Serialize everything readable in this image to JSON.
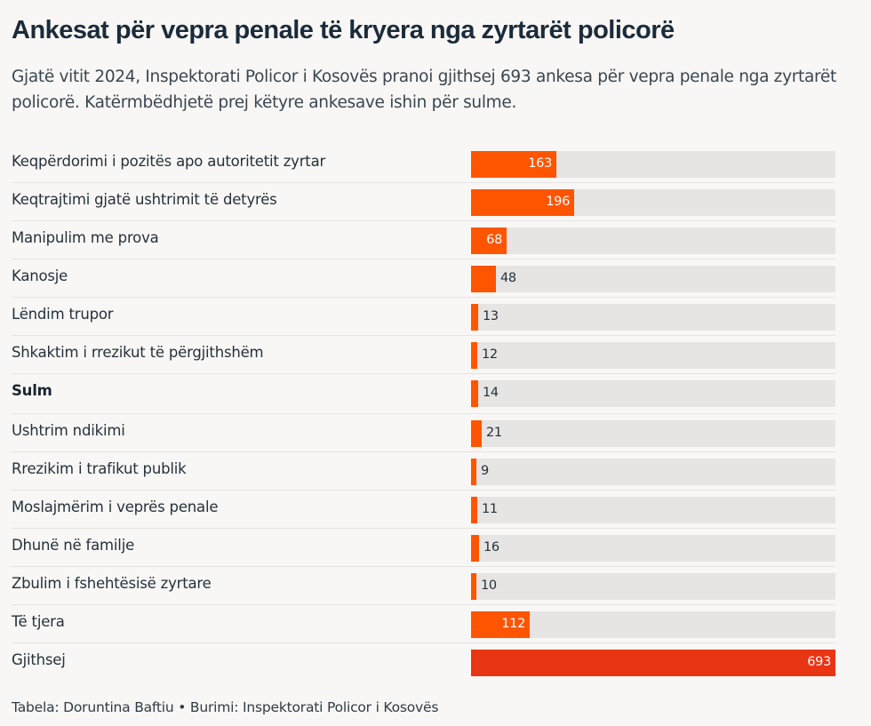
{
  "header": {
    "title": "Ankesat për vepra penale të kryera nga zyrtarët policorë",
    "subtitle": "Gjatë vitit 2024, Inspektorati Policor i Kosovës pranoi gjithsej 693 ankesa për vepra penale nga zyrtarët policorë. Katërmbëdhjetë prej këtyre ankesave ishin për sulme."
  },
  "colors": {
    "bar": "#ff5500",
    "total_bar": "#e83513",
    "track": "#e6e5e3",
    "background": "#f8f7f5"
  },
  "chart_data": {
    "type": "bar",
    "orientation": "horizontal",
    "title": "Ankesat për vepra penale të kryera nga zyrtarët policorë",
    "xlabel": "",
    "ylabel": "",
    "xlim": [
      0,
      693
    ],
    "grid": false,
    "categories": [
      "Keqpërdorimi i pozitës apo autoritetit zyrtar",
      "Keqtrajtimi gjatë ushtrimit të detyrës",
      "Manipulim me prova",
      "Kanosje",
      "Lëndim trupor",
      "Shkaktim i rrezikut të përgjithshëm",
      "Sulm",
      "Ushtrim ndikimi",
      "Rrezikim i trafikut publik",
      "Moslajmërim i veprës penale",
      "Dhunë në familje",
      "Zbulim i fshehtësisë zyrtare",
      "Të tjera",
      "Gjithsej"
    ],
    "values": [
      163,
      196,
      68,
      48,
      13,
      12,
      14,
      21,
      9,
      11,
      16,
      10,
      112,
      693
    ],
    "highlight": [
      "Sulm"
    ],
    "total_category": "Gjithsej"
  },
  "footer": {
    "credit": "Tabela: Doruntina Baftiu • Burimi: Inspektorati Policor i Kosovës"
  }
}
